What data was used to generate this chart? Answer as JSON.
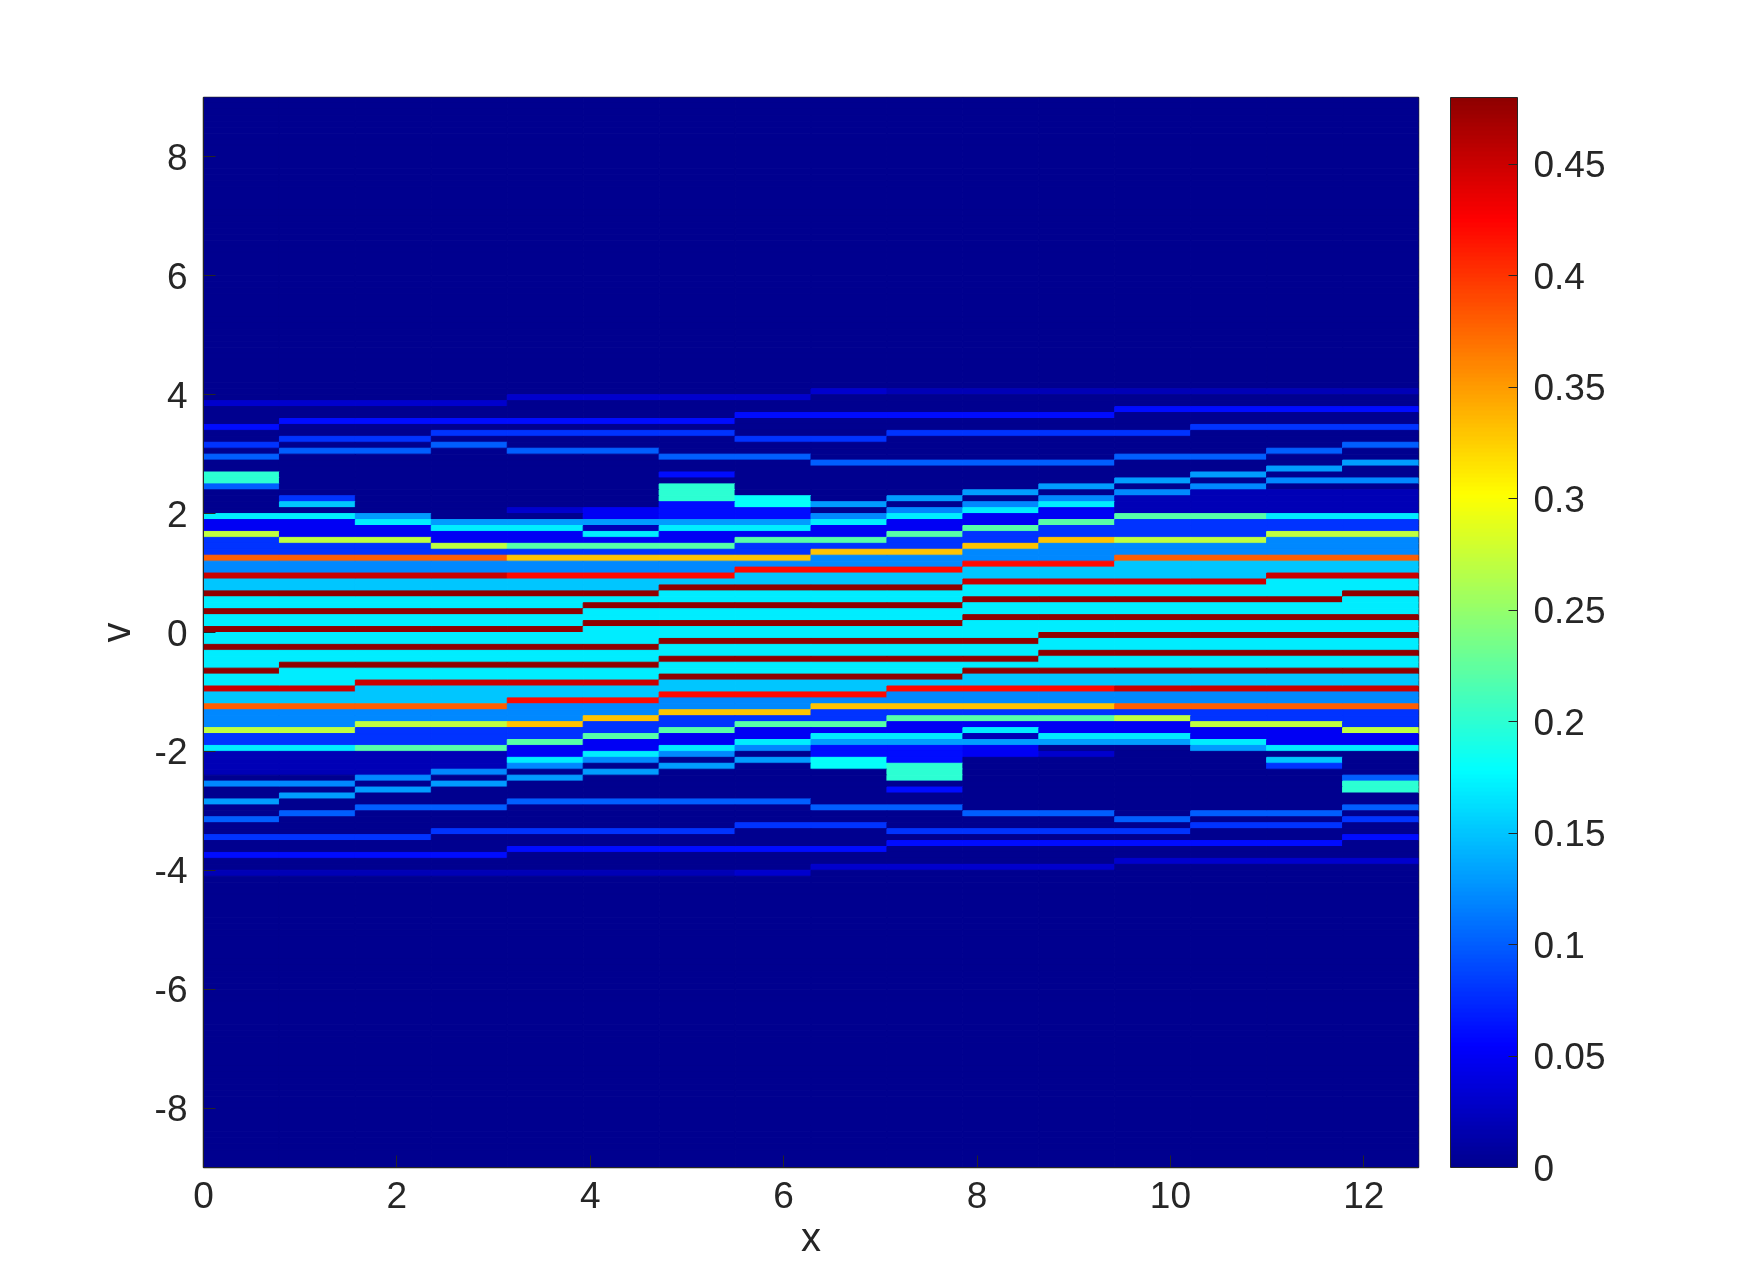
{
  "chart_data": {
    "type": "heatmap",
    "xlabel": "x",
    "ylabel": "v",
    "x": [
      0.393,
      1.178,
      1.963,
      2.749,
      3.534,
      4.32,
      5.105,
      5.89,
      6.676,
      7.461,
      8.247,
      9.032,
      9.817,
      10.603,
      11.388,
      12.174
    ],
    "cells": [
      [
        0,
        0,
        0,
        0,
        0,
        0,
        0,
        0,
        0,
        0,
        0,
        0,
        0,
        0,
        0,
        0
      ],
      [
        0,
        0,
        0,
        0,
        0,
        0,
        0,
        0,
        0,
        0,
        0,
        0,
        0,
        0,
        0,
        0
      ],
      [
        0,
        0,
        0,
        0,
        0,
        0,
        0,
        0,
        0,
        0,
        0,
        0,
        0,
        0,
        0,
        0
      ],
      [
        0,
        0,
        0,
        0,
        0,
        0,
        0,
        0,
        0,
        0,
        0,
        0,
        0,
        0,
        0,
        0
      ],
      [
        0,
        0,
        0,
        0,
        0,
        0,
        0,
        0,
        0,
        0,
        0,
        0,
        0,
        0,
        0,
        0
      ],
      [
        0,
        0,
        0,
        0,
        0,
        0,
        0,
        0,
        0,
        0,
        0,
        0,
        0,
        0,
        0,
        0
      ],
      [
        0,
        0,
        0,
        0,
        0,
        0,
        0,
        0,
        0,
        0,
        0,
        0,
        0,
        0,
        0,
        0
      ],
      [
        0,
        0,
        0,
        0,
        0,
        0,
        0,
        0,
        0,
        0,
        0,
        0,
        0,
        0,
        0,
        0
      ],
      [
        0,
        0,
        0,
        0,
        0,
        0,
        0,
        0,
        0,
        0,
        0,
        0,
        0,
        0,
        0,
        0
      ],
      [
        0,
        0,
        0,
        0,
        0,
        0,
        0,
        0,
        0,
        0,
        0,
        0,
        0,
        0,
        0,
        0
      ],
      [
        0,
        0,
        0,
        0,
        0,
        0,
        0,
        0,
        0,
        0,
        0,
        0,
        0,
        0,
        0,
        0
      ],
      [
        0,
        0,
        0,
        0,
        0,
        0,
        0,
        0,
        0,
        0,
        0,
        0,
        0,
        0,
        0,
        0
      ],
      [
        0,
        0,
        0,
        0,
        0,
        0,
        0,
        0,
        0,
        0,
        0,
        0,
        0,
        0,
        0,
        0
      ],
      [
        0,
        0,
        0,
        0,
        0,
        0,
        0,
        0,
        0,
        0,
        0,
        0,
        0,
        0,
        0,
        0
      ],
      [
        0,
        0,
        0,
        0,
        0,
        0,
        0,
        0,
        0,
        0,
        0,
        0,
        0,
        0,
        0,
        0
      ],
      [
        0,
        0,
        0,
        0,
        0,
        0,
        0,
        0,
        0,
        0,
        0,
        0,
        0,
        0,
        0,
        0
      ],
      [
        0,
        0,
        0,
        0,
        0,
        0,
        0,
        0,
        0,
        0,
        0,
        0,
        0,
        0,
        0,
        0
      ],
      [
        0,
        0,
        0,
        0,
        0,
        0,
        0,
        0,
        0,
        0,
        0,
        0,
        0,
        0,
        0,
        0
      ],
      [
        0,
        0,
        0,
        0,
        0,
        0,
        0,
        0,
        0,
        0,
        0,
        0,
        0,
        0,
        0,
        0
      ],
      [
        0,
        0,
        0,
        0,
        0,
        0,
        0,
        0,
        0,
        0,
        0,
        0,
        0,
        0,
        0,
        0
      ],
      [
        0,
        0,
        0,
        0,
        0,
        0,
        0,
        0,
        0,
        0,
        0,
        0,
        0,
        0,
        0,
        0
      ],
      [
        0,
        0,
        0,
        0,
        0,
        0,
        0,
        0,
        0,
        0,
        0,
        0,
        0,
        0,
        0,
        0
      ],
      [
        0,
        0,
        0,
        0,
        0,
        0,
        0,
        0,
        0,
        0,
        0,
        0,
        0,
        0,
        0,
        0
      ],
      [
        0,
        0,
        0,
        0,
        0,
        0,
        0,
        0,
        0,
        0,
        0,
        0,
        0,
        0,
        0,
        0
      ],
      [
        0,
        0,
        0,
        0,
        0,
        0,
        0,
        0,
        0,
        0,
        0,
        0,
        0,
        0,
        0,
        0
      ],
      [
        0,
        0,
        0,
        0,
        0,
        0,
        0,
        0,
        0,
        0,
        0,
        0,
        0,
        0,
        0,
        0
      ],
      [
        0,
        0,
        0,
        0,
        0,
        0,
        0,
        0,
        0,
        0,
        0,
        0,
        0,
        0,
        0,
        0
      ],
      [
        0,
        0,
        0,
        0,
        0,
        0,
        0,
        0,
        0,
        0,
        0,
        0,
        0,
        0,
        0,
        0
      ],
      [
        0,
        0,
        0,
        0,
        0,
        0,
        0,
        0,
        0,
        0,
        0,
        0,
        0,
        0,
        0,
        0
      ],
      [
        0,
        0,
        0,
        0,
        0,
        0,
        0,
        0,
        0,
        0,
        0,
        0,
        0,
        0,
        0,
        0
      ],
      [
        0,
        0,
        0,
        0,
        0,
        0,
        0,
        0,
        0,
        0,
        0,
        0,
        0,
        0,
        0,
        0
      ],
      [
        0,
        0,
        0,
        0,
        0,
        0,
        0,
        0,
        0,
        0,
        0,
        0,
        0,
        0,
        0,
        0
      ],
      [
        0,
        0,
        0,
        0,
        0,
        0,
        0,
        0,
        0,
        0,
        0,
        0,
        0,
        0,
        0,
        0
      ],
      [
        0,
        0,
        0,
        0,
        0,
        0,
        0,
        0,
        0,
        0,
        0,
        0,
        0,
        0,
        0,
        0
      ],
      [
        0,
        0,
        0,
        0,
        0,
        0,
        0,
        0,
        0,
        0,
        0,
        0,
        0,
        0,
        0,
        0
      ],
      [
        0,
        0,
        0,
        0,
        0,
        0,
        0,
        0,
        0,
        0,
        0,
        0,
        0,
        0,
        0,
        0
      ],
      [
        0,
        0,
        0,
        0,
        0,
        0,
        0,
        0,
        0,
        0,
        0,
        0,
        0,
        0,
        0,
        0
      ],
      [
        0,
        0,
        0,
        0,
        0,
        0,
        0,
        0,
        0,
        0,
        0,
        0,
        0,
        0,
        0,
        0
      ],
      [
        0,
        0,
        0,
        0,
        0,
        0,
        0,
        0,
        0,
        0,
        0,
        0,
        0,
        0,
        0,
        0
      ],
      [
        0,
        0,
        0,
        0,
        0,
        0,
        0,
        0,
        0,
        0,
        0,
        0,
        0,
        0,
        0,
        0
      ],
      [
        0,
        0,
        0,
        0,
        0,
        0,
        0,
        0,
        0,
        0,
        0,
        0,
        0,
        0,
        0,
        0
      ],
      [
        0,
        0,
        0,
        0,
        0,
        0,
        0,
        0,
        0,
        0,
        0,
        0,
        0,
        0,
        0,
        0
      ],
      [
        0,
        0,
        0,
        0,
        0,
        0,
        0,
        0,
        0,
        0,
        0,
        0,
        0,
        0,
        0,
        0
      ],
      [
        0,
        0,
        0,
        0,
        0,
        0,
        0,
        0,
        0,
        0,
        0,
        0,
        0,
        0,
        0,
        0
      ],
      [
        0,
        0,
        0,
        0,
        0,
        0,
        0,
        0,
        0,
        0,
        0,
        0,
        0,
        0,
        0,
        0
      ],
      [
        0,
        0,
        0,
        0,
        0,
        0,
        0,
        0,
        0,
        0,
        0,
        0,
        0,
        0,
        0,
        0
      ],
      [
        0,
        0,
        0,
        0,
        0,
        0,
        0,
        0,
        0,
        0,
        0,
        0,
        0,
        0,
        0,
        0
      ],
      [
        0,
        0,
        0,
        0,
        0,
        0,
        0,
        0,
        0,
        0,
        0,
        0,
        0,
        0,
        0,
        0
      ],
      [
        0,
        0,
        0,
        0,
        0,
        0,
        0,
        0,
        0,
        0,
        0,
        0,
        0,
        0,
        0,
        0
      ],
      [
        0,
        0,
        0,
        0,
        0,
        0,
        0,
        0,
        0.03,
        0.02,
        0.02,
        0.02,
        0.02,
        0.02,
        0.02,
        0.02
      ],
      [
        0,
        0,
        0,
        0,
        0.03,
        0.03,
        0.03,
        0.03,
        0,
        0,
        0,
        0,
        0,
        0,
        0,
        0
      ],
      [
        0.03,
        0.03,
        0.03,
        0.03,
        0,
        0,
        0,
        0,
        0,
        0,
        0,
        0,
        0,
        0,
        0,
        0
      ],
      [
        0,
        0,
        0,
        0,
        0,
        0,
        0,
        0,
        0,
        0,
        0,
        0,
        0.06,
        0.06,
        0.06,
        0.06
      ],
      [
        0,
        0,
        0,
        0,
        0,
        0,
        0,
        0.06,
        0.06,
        0.06,
        0.06,
        0.06,
        0,
        0,
        0,
        0
      ],
      [
        0,
        0.06,
        0.06,
        0.06,
        0.06,
        0.06,
        0.06,
        0,
        0,
        0,
        0,
        0,
        0,
        0,
        0,
        0
      ],
      [
        0.06,
        0,
        0,
        0,
        0,
        0,
        0,
        0,
        0,
        0,
        0,
        0,
        0,
        0.08,
        0.08,
        0.08
      ],
      [
        0,
        0,
        0,
        0.08,
        0.08,
        0.08,
        0.08,
        0,
        0,
        0.08,
        0.08,
        0.08,
        0.08,
        0,
        0,
        0
      ],
      [
        0,
        0.08,
        0.08,
        0,
        0,
        0,
        0,
        0.08,
        0.08,
        0,
        0,
        0,
        0,
        0,
        0,
        0
      ],
      [
        0.08,
        0,
        0,
        0.1,
        0,
        0,
        0,
        0,
        0,
        0,
        0,
        0,
        0,
        0,
        0,
        0.1
      ],
      [
        0,
        0.1,
        0.1,
        0,
        0.1,
        0.1,
        0,
        0,
        0,
        0,
        0,
        0,
        0,
        0,
        0.1,
        0
      ],
      [
        0.1,
        0,
        0,
        0,
        0,
        0,
        0.1,
        0.1,
        0,
        0,
        0,
        0,
        0.1,
        0.1,
        0,
        0
      ],
      [
        0,
        0,
        0,
        0,
        0,
        0,
        0,
        0,
        0.1,
        0.1,
        0.1,
        0.1,
        0,
        0,
        0,
        0.13
      ],
      [
        0,
        0,
        0,
        0,
        0,
        0,
        0,
        0,
        0,
        0,
        0,
        0,
        0,
        0,
        0.13,
        0
      ],
      [
        0.2,
        0,
        0,
        0,
        0,
        0,
        0.06,
        0,
        0,
        0,
        0,
        0,
        0,
        0.13,
        0,
        0
      ],
      [
        0.2,
        0,
        0,
        0,
        0,
        0,
        0,
        0,
        0,
        0,
        0,
        0,
        0.13,
        0,
        0.12,
        0.12
      ],
      [
        0.1,
        0,
        0,
        0,
        0,
        0,
        0.2,
        0,
        0,
        0,
        0,
        0.13,
        0,
        0.12,
        0,
        0
      ],
      [
        0,
        0,
        0,
        0,
        0,
        0,
        0.2,
        0,
        0,
        0,
        0.13,
        0,
        0.12,
        0.02,
        0.02,
        0.02
      ],
      [
        0,
        0.08,
        0,
        0,
        0,
        0,
        0.2,
        0.18,
        0,
        0.13,
        0,
        0.12,
        0.02,
        0.02,
        0.02,
        0.02
      ],
      [
        0,
        0.15,
        0,
        0,
        0,
        0,
        0.06,
        0.18,
        0.13,
        0,
        0.12,
        0.17,
        0.02,
        0.02,
        0.02,
        0.02
      ],
      [
        0,
        0,
        0,
        0,
        0.03,
        0.05,
        0.06,
        0.06,
        0,
        0.12,
        0.17,
        0.05,
        0.02,
        0.02,
        0.02,
        0.02
      ],
      [
        0.17,
        0.17,
        0.13,
        0,
        0,
        0.05,
        0.06,
        0.06,
        0.12,
        0.17,
        0.05,
        0.05,
        0.22,
        0.22,
        0.17,
        0.17
      ],
      [
        0.05,
        0.05,
        0.17,
        0.13,
        0.13,
        0.13,
        0.13,
        0.13,
        0.17,
        0.05,
        0.05,
        0.22,
        0.08,
        0.08,
        0.08,
        0.08
      ],
      [
        0.05,
        0.05,
        0.05,
        0.17,
        0.17,
        0.02,
        0.17,
        0.17,
        0.05,
        0.05,
        0.22,
        0.08,
        0.08,
        0.08,
        0.08,
        0.08
      ],
      [
        0.27,
        0.05,
        0.05,
        0.05,
        0.05,
        0.17,
        0.05,
        0.05,
        0.05,
        0.22,
        0.08,
        0.08,
        0.08,
        0.08,
        0.27,
        0.27
      ],
      [
        0.08,
        0.27,
        0.27,
        0.05,
        0.05,
        0.05,
        0.05,
        0.22,
        0.22,
        0.08,
        0.08,
        0.33,
        0.27,
        0.27,
        0.12,
        0.12
      ],
      [
        0.08,
        0.08,
        0.08,
        0.27,
        0.22,
        0.22,
        0.22,
        0.08,
        0.08,
        0.08,
        0.33,
        0.12,
        0.12,
        0.12,
        0.12,
        0.12
      ],
      [
        0.08,
        0.08,
        0.08,
        0.08,
        0.08,
        0.08,
        0.08,
        0.08,
        0.33,
        0.33,
        0.12,
        0.12,
        0.12,
        0.12,
        0.12,
        0.12
      ],
      [
        0.38,
        0.38,
        0.38,
        0.38,
        0.33,
        0.33,
        0.33,
        0.33,
        0.12,
        0.12,
        0.12,
        0.12,
        0.38,
        0.38,
        0.38,
        0.38
      ],
      [
        0.12,
        0.12,
        0.12,
        0.12,
        0.12,
        0.12,
        0.12,
        0.12,
        0.12,
        0.12,
        0.42,
        0.42,
        0.15,
        0.15,
        0.15,
        0.15
      ],
      [
        0.12,
        0.12,
        0.12,
        0.12,
        0.12,
        0.12,
        0.12,
        0.42,
        0.42,
        0.42,
        0.15,
        0.15,
        0.15,
        0.15,
        0.15,
        0.15
      ],
      [
        0.45,
        0.45,
        0.45,
        0.45,
        0.42,
        0.42,
        0.42,
        0.15,
        0.15,
        0.15,
        0.15,
        0.15,
        0.15,
        0.15,
        0.45,
        0.45
      ],
      [
        0.15,
        0.15,
        0.15,
        0.15,
        0.15,
        0.15,
        0.15,
        0.15,
        0.15,
        0.15,
        0.45,
        0.45,
        0.45,
        0.45,
        0.17,
        0.17
      ],
      [
        0.15,
        0.15,
        0.15,
        0.15,
        0.15,
        0.15,
        0.48,
        0.48,
        0.48,
        0.48,
        0.17,
        0.17,
        0.17,
        0.17,
        0.17,
        0.17
      ],
      [
        0.48,
        0.48,
        0.48,
        0.48,
        0.48,
        0.48,
        0.17,
        0.17,
        0.17,
        0.17,
        0.17,
        0.17,
        0.17,
        0.17,
        0.17,
        0.48
      ],
      [
        0.17,
        0.17,
        0.17,
        0.17,
        0.17,
        0.17,
        0.17,
        0.17,
        0.17,
        0.17,
        0.48,
        0.48,
        0.48,
        0.48,
        0.48,
        0.17
      ],
      [
        0.17,
        0.17,
        0.17,
        0.17,
        0.17,
        0.48,
        0.48,
        0.48,
        0.48,
        0.48,
        0.17,
        0.17,
        0.17,
        0.17,
        0.17,
        0.17
      ],
      [
        0.48,
        0.48,
        0.48,
        0.48,
        0.48,
        0.17,
        0.17,
        0.17,
        0.17,
        0.17,
        0.17,
        0.17,
        0.17,
        0.17,
        0.17,
        0.17
      ],
      [
        0.17,
        0.17,
        0.17,
        0.17,
        0.17,
        0.17,
        0.17,
        0.17,
        0.17,
        0.17,
        0.48,
        0.48,
        0.48,
        0.48,
        0.48,
        0.48
      ],
      [
        0.17,
        0.17,
        0.17,
        0.17,
        0.17,
        0.48,
        0.48,
        0.48,
        0.48,
        0.48,
        0.17,
        0.17,
        0.17,
        0.17,
        0.17,
        0.17
      ],
      [
        0.48,
        0.48,
        0.48,
        0.48,
        0.48,
        0.17,
        0.17,
        0.17,
        0.17,
        0.17,
        0.17,
        0.17,
        0.17,
        0.17,
        0.17,
        0.17
      ],
      [
        0.17,
        0.17,
        0.17,
        0.17,
        0.17,
        0.17,
        0.17,
        0.17,
        0.17,
        0.17,
        0.17,
        0.48,
        0.48,
        0.48,
        0.48,
        0.48
      ],
      [
        0.17,
        0.17,
        0.17,
        0.17,
        0.17,
        0.17,
        0.48,
        0.48,
        0.48,
        0.48,
        0.48,
        0.17,
        0.17,
        0.17,
        0.17,
        0.17
      ],
      [
        0.48,
        0.48,
        0.48,
        0.48,
        0.48,
        0.48,
        0.17,
        0.17,
        0.17,
        0.17,
        0.17,
        0.17,
        0.17,
        0.17,
        0.17,
        0.17
      ],
      [
        0.17,
        0.17,
        0.17,
        0.17,
        0.17,
        0.17,
        0.17,
        0.17,
        0.17,
        0.17,
        0.17,
        0.48,
        0.48,
        0.48,
        0.48,
        0.48
      ],
      [
        0.17,
        0.17,
        0.17,
        0.17,
        0.17,
        0.17,
        0.48,
        0.48,
        0.48,
        0.48,
        0.48,
        0.17,
        0.17,
        0.17,
        0.17,
        0.17
      ],
      [
        0.17,
        0.48,
        0.48,
        0.48,
        0.48,
        0.48,
        0.17,
        0.17,
        0.17,
        0.17,
        0.17,
        0.17,
        0.17,
        0.17,
        0.17,
        0.17
      ],
      [
        0.48,
        0.17,
        0.17,
        0.17,
        0.17,
        0.17,
        0.17,
        0.17,
        0.17,
        0.17,
        0.48,
        0.48,
        0.48,
        0.48,
        0.48,
        0.48
      ],
      [
        0.17,
        0.17,
        0.17,
        0.17,
        0.17,
        0.17,
        0.48,
        0.48,
        0.48,
        0.48,
        0.15,
        0.15,
        0.15,
        0.15,
        0.15,
        0.15
      ],
      [
        0.17,
        0.17,
        0.45,
        0.45,
        0.45,
        0.45,
        0.15,
        0.15,
        0.15,
        0.15,
        0.15,
        0.15,
        0.15,
        0.15,
        0.15,
        0.15
      ],
      [
        0.45,
        0.45,
        0.15,
        0.15,
        0.15,
        0.15,
        0.15,
        0.15,
        0.15,
        0.42,
        0.42,
        0.42,
        0.45,
        0.45,
        0.45,
        0.45
      ],
      [
        0.15,
        0.15,
        0.15,
        0.15,
        0.15,
        0.15,
        0.42,
        0.42,
        0.42,
        0.12,
        0.12,
        0.12,
        0.12,
        0.12,
        0.12,
        0.12
      ],
      [
        0.15,
        0.15,
        0.15,
        0.15,
        0.42,
        0.42,
        0.12,
        0.12,
        0.12,
        0.12,
        0.12,
        0.12,
        0.12,
        0.12,
        0.12,
        0.12
      ],
      [
        0.38,
        0.38,
        0.38,
        0.38,
        0.12,
        0.12,
        0.12,
        0.12,
        0.33,
        0.33,
        0.33,
        0.33,
        0.38,
        0.38,
        0.38,
        0.38
      ],
      [
        0.12,
        0.12,
        0.12,
        0.12,
        0.12,
        0.12,
        0.33,
        0.33,
        0.08,
        0.08,
        0.08,
        0.08,
        0.08,
        0.08,
        0.08,
        0.08
      ],
      [
        0.12,
        0.12,
        0.12,
        0.12,
        0.12,
        0.33,
        0.08,
        0.08,
        0.08,
        0.22,
        0.22,
        0.22,
        0.27,
        0.08,
        0.08,
        0.08
      ],
      [
        0.12,
        0.12,
        0.27,
        0.27,
        0.33,
        0.08,
        0.08,
        0.22,
        0.22,
        0.05,
        0.05,
        0.05,
        0.05,
        0.27,
        0.27,
        0.08
      ],
      [
        0.27,
        0.27,
        0.08,
        0.08,
        0.08,
        0.08,
        0.22,
        0.05,
        0.05,
        0.05,
        0.17,
        0.05,
        0.05,
        0.05,
        0.05,
        0.27
      ],
      [
        0.08,
        0.08,
        0.08,
        0.08,
        0.08,
        0.22,
        0.05,
        0.05,
        0.17,
        0.17,
        0.02,
        0.17,
        0.17,
        0.05,
        0.05,
        0.05
      ],
      [
        0.08,
        0.08,
        0.08,
        0.08,
        0.22,
        0.05,
        0.05,
        0.17,
        0.13,
        0.13,
        0.13,
        0.13,
        0.13,
        0.17,
        0.05,
        0.05
      ],
      [
        0.17,
        0.17,
        0.22,
        0.22,
        0.05,
        0.05,
        0.17,
        0.12,
        0.06,
        0.06,
        0.05,
        0,
        0,
        0.13,
        0.17,
        0.17
      ],
      [
        0.02,
        0.02,
        0.02,
        0.02,
        0.05,
        0.17,
        0.12,
        0,
        0.06,
        0.06,
        0.05,
        0.03,
        0,
        0,
        0,
        0
      ],
      [
        0.02,
        0.02,
        0.02,
        0.02,
        0.17,
        0.12,
        0,
        0.13,
        0.18,
        0.06,
        0,
        0,
        0,
        0,
        0.15,
        0
      ],
      [
        0.02,
        0.02,
        0.02,
        0.02,
        0.12,
        0,
        0.13,
        0,
        0.18,
        0.2,
        0,
        0,
        0,
        0,
        0.08,
        0
      ],
      [
        0.02,
        0.02,
        0.02,
        0.12,
        0,
        0.13,
        0,
        0,
        0,
        0.2,
        0,
        0,
        0,
        0,
        0,
        0
      ],
      [
        0,
        0,
        0.12,
        0,
        0.13,
        0,
        0,
        0,
        0,
        0.2,
        0,
        0,
        0,
        0,
        0,
        0.1
      ],
      [
        0.12,
        0.12,
        0,
        0.13,
        0,
        0,
        0,
        0,
        0,
        0,
        0,
        0,
        0,
        0,
        0,
        0.2
      ],
      [
        0,
        0,
        0.13,
        0,
        0,
        0,
        0,
        0,
        0,
        0.06,
        0,
        0,
        0,
        0,
        0,
        0.2
      ],
      [
        0,
        0.13,
        0,
        0,
        0,
        0,
        0,
        0,
        0,
        0,
        0,
        0,
        0,
        0,
        0,
        0
      ],
      [
        0.13,
        0,
        0,
        0,
        0.1,
        0.1,
        0.1,
        0.1,
        0,
        0,
        0,
        0,
        0,
        0,
        0,
        0
      ],
      [
        0,
        0,
        0.1,
        0.1,
        0,
        0,
        0,
        0,
        0.1,
        0.1,
        0,
        0,
        0,
        0,
        0,
        0.1
      ],
      [
        0,
        0.1,
        0,
        0,
        0,
        0,
        0,
        0,
        0,
        0,
        0.1,
        0.1,
        0,
        0.1,
        0.1,
        0
      ],
      [
        0.1,
        0,
        0,
        0,
        0,
        0,
        0,
        0,
        0,
        0,
        0,
        0,
        0.1,
        0,
        0,
        0.08
      ],
      [
        0,
        0,
        0,
        0,
        0,
        0,
        0,
        0.08,
        0.08,
        0,
        0,
        0,
        0,
        0.08,
        0.08,
        0
      ],
      [
        0,
        0,
        0,
        0.08,
        0.08,
        0.08,
        0.08,
        0,
        0,
        0.08,
        0.08,
        0.08,
        0.08,
        0,
        0,
        0
      ],
      [
        0.08,
        0.08,
        0.08,
        0,
        0,
        0,
        0,
        0,
        0,
        0,
        0,
        0,
        0,
        0,
        0,
        0.06
      ],
      [
        0,
        0,
        0,
        0,
        0,
        0,
        0,
        0,
        0,
        0.06,
        0.06,
        0.06,
        0.06,
        0.06,
        0.06,
        0
      ],
      [
        0,
        0,
        0,
        0,
        0.06,
        0.06,
        0.06,
        0.06,
        0.06,
        0,
        0,
        0,
        0,
        0,
        0,
        0
      ],
      [
        0.06,
        0.06,
        0.06,
        0.06,
        0,
        0,
        0,
        0,
        0,
        0,
        0,
        0,
        0,
        0,
        0,
        0
      ],
      [
        0,
        0,
        0,
        0,
        0,
        0,
        0,
        0,
        0,
        0,
        0,
        0,
        0.03,
        0.03,
        0.03,
        0.03
      ],
      [
        0,
        0,
        0,
        0,
        0,
        0,
        0,
        0,
        0.03,
        0.03,
        0.03,
        0.03,
        0,
        0,
        0,
        0
      ],
      [
        0.02,
        0.02,
        0.02,
        0.02,
        0.02,
        0.02,
        0.02,
        0.03,
        0,
        0,
        0,
        0,
        0,
        0,
        0,
        0
      ],
      [
        0,
        0,
        0,
        0,
        0,
        0,
        0,
        0,
        0,
        0,
        0,
        0,
        0,
        0,
        0,
        0
      ],
      [
        0,
        0,
        0,
        0,
        0,
        0,
        0,
        0,
        0,
        0,
        0,
        0,
        0,
        0,
        0,
        0
      ],
      [
        0,
        0,
        0,
        0,
        0,
        0,
        0,
        0,
        0,
        0,
        0,
        0,
        0,
        0,
        0,
        0
      ],
      [
        0,
        0,
        0,
        0,
        0,
        0,
        0,
        0,
        0,
        0,
        0,
        0,
        0,
        0,
        0,
        0
      ],
      [
        0,
        0,
        0,
        0,
        0,
        0,
        0,
        0,
        0,
        0,
        0,
        0,
        0,
        0,
        0,
        0
      ],
      [
        0,
        0,
        0,
        0,
        0,
        0,
        0,
        0,
        0,
        0,
        0,
        0,
        0,
        0,
        0,
        0
      ],
      [
        0,
        0,
        0,
        0,
        0,
        0,
        0,
        0,
        0,
        0,
        0,
        0,
        0,
        0,
        0,
        0
      ],
      [
        0,
        0,
        0,
        0,
        0,
        0,
        0,
        0,
        0,
        0,
        0,
        0,
        0,
        0,
        0,
        0
      ],
      [
        0,
        0,
        0,
        0,
        0,
        0,
        0,
        0,
        0,
        0,
        0,
        0,
        0,
        0,
        0,
        0
      ],
      [
        0,
        0,
        0,
        0,
        0,
        0,
        0,
        0,
        0,
        0,
        0,
        0,
        0,
        0,
        0,
        0
      ],
      [
        0,
        0,
        0,
        0,
        0,
        0,
        0,
        0,
        0,
        0,
        0,
        0,
        0,
        0,
        0,
        0
      ],
      [
        0,
        0,
        0,
        0,
        0,
        0,
        0,
        0,
        0,
        0,
        0,
        0,
        0,
        0,
        0,
        0
      ],
      [
        0,
        0,
        0,
        0,
        0,
        0,
        0,
        0,
        0,
        0,
        0,
        0,
        0,
        0,
        0,
        0
      ],
      [
        0,
        0,
        0,
        0,
        0,
        0,
        0,
        0,
        0,
        0,
        0,
        0,
        0,
        0,
        0,
        0
      ],
      [
        0,
        0,
        0,
        0,
        0,
        0,
        0,
        0,
        0,
        0,
        0,
        0,
        0,
        0,
        0,
        0
      ],
      [
        0,
        0,
        0,
        0,
        0,
        0,
        0,
        0,
        0,
        0,
        0,
        0,
        0,
        0,
        0,
        0
      ],
      [
        0,
        0,
        0,
        0,
        0,
        0,
        0,
        0,
        0,
        0,
        0,
        0,
        0,
        0,
        0,
        0
      ],
      [
        0,
        0,
        0,
        0,
        0,
        0,
        0,
        0,
        0,
        0,
        0,
        0,
        0,
        0,
        0,
        0
      ],
      [
        0,
        0,
        0,
        0,
        0,
        0,
        0,
        0,
        0,
        0,
        0,
        0,
        0,
        0,
        0,
        0
      ],
      [
        0,
        0,
        0,
        0,
        0,
        0,
        0,
        0,
        0,
        0,
        0,
        0,
        0,
        0,
        0,
        0
      ],
      [
        0,
        0,
        0,
        0,
        0,
        0,
        0,
        0,
        0,
        0,
        0,
        0,
        0,
        0,
        0,
        0
      ],
      [
        0,
        0,
        0,
        0,
        0,
        0,
        0,
        0,
        0,
        0,
        0,
        0,
        0,
        0,
        0,
        0
      ],
      [
        0,
        0,
        0,
        0,
        0,
        0,
        0,
        0,
        0,
        0,
        0,
        0,
        0,
        0,
        0,
        0
      ],
      [
        0,
        0,
        0,
        0,
        0,
        0,
        0,
        0,
        0,
        0,
        0,
        0,
        0,
        0,
        0,
        0
      ],
      [
        0,
        0,
        0,
        0,
        0,
        0,
        0,
        0,
        0,
        0,
        0,
        0,
        0,
        0,
        0,
        0
      ],
      [
        0,
        0,
        0,
        0,
        0,
        0,
        0,
        0,
        0,
        0,
        0,
        0,
        0,
        0,
        0,
        0
      ],
      [
        0,
        0,
        0,
        0,
        0,
        0,
        0,
        0,
        0,
        0,
        0,
        0,
        0,
        0,
        0,
        0
      ],
      [
        0,
        0,
        0,
        0,
        0,
        0,
        0,
        0,
        0,
        0,
        0,
        0,
        0,
        0,
        0,
        0
      ],
      [
        0,
        0,
        0,
        0,
        0,
        0,
        0,
        0,
        0,
        0,
        0,
        0,
        0,
        0,
        0,
        0
      ],
      [
        0,
        0,
        0,
        0,
        0,
        0,
        0,
        0,
        0,
        0,
        0,
        0,
        0,
        0,
        0,
        0
      ],
      [
        0,
        0,
        0,
        0,
        0,
        0,
        0,
        0,
        0,
        0,
        0,
        0,
        0,
        0,
        0,
        0
      ],
      [
        0,
        0,
        0,
        0,
        0,
        0,
        0,
        0,
        0,
        0,
        0,
        0,
        0,
        0,
        0,
        0
      ],
      [
        0,
        0,
        0,
        0,
        0,
        0,
        0,
        0,
        0,
        0,
        0,
        0,
        0,
        0,
        0,
        0
      ],
      [
        0,
        0,
        0,
        0,
        0,
        0,
        0,
        0,
        0,
        0,
        0,
        0,
        0,
        0,
        0,
        0
      ],
      [
        0,
        0,
        0,
        0,
        0,
        0,
        0,
        0,
        0,
        0,
        0,
        0,
        0,
        0,
        0,
        0
      ],
      [
        0,
        0,
        0,
        0,
        0,
        0,
        0,
        0,
        0,
        0,
        0,
        0,
        0,
        0,
        0,
        0
      ],
      [
        0,
        0,
        0,
        0,
        0,
        0,
        0,
        0,
        0,
        0,
        0,
        0,
        0,
        0,
        0,
        0
      ],
      [
        0,
        0,
        0,
        0,
        0,
        0,
        0,
        0,
        0,
        0,
        0,
        0,
        0,
        0,
        0,
        0
      ],
      [
        0,
        0,
        0,
        0,
        0,
        0,
        0,
        0,
        0,
        0,
        0,
        0,
        0,
        0,
        0,
        0
      ],
      [
        0,
        0,
        0,
        0,
        0,
        0,
        0,
        0,
        0,
        0,
        0,
        0,
        0,
        0,
        0,
        0
      ],
      [
        0,
        0,
        0,
        0,
        0,
        0,
        0,
        0,
        0,
        0,
        0,
        0,
        0,
        0,
        0,
        0
      ],
      [
        0,
        0,
        0,
        0,
        0,
        0,
        0,
        0,
        0,
        0,
        0,
        0,
        0,
        0,
        0,
        0
      ],
      [
        0,
        0,
        0,
        0,
        0,
        0,
        0,
        0,
        0,
        0,
        0,
        0,
        0,
        0,
        0,
        0
      ],
      [
        0,
        0,
        0,
        0,
        0,
        0,
        0,
        0,
        0,
        0,
        0,
        0,
        0,
        0,
        0,
        0
      ],
      [
        0,
        0,
        0,
        0,
        0,
        0,
        0,
        0,
        0,
        0,
        0,
        0,
        0,
        0,
        0,
        0
      ],
      [
        0,
        0,
        0,
        0,
        0,
        0,
        0,
        0,
        0,
        0,
        0,
        0,
        0,
        0,
        0,
        0
      ],
      [
        0,
        0,
        0,
        0,
        0,
        0,
        0,
        0,
        0,
        0,
        0,
        0,
        0,
        0,
        0,
        0
      ],
      [
        0,
        0,
        0,
        0,
        0,
        0,
        0,
        0,
        0,
        0,
        0,
        0,
        0,
        0,
        0,
        0
      ],
      [
        0,
        0,
        0,
        0,
        0,
        0,
        0,
        0,
        0,
        0,
        0,
        0,
        0,
        0,
        0,
        0
      ]
    ],
    "clim": [
      0,
      0.48
    ],
    "cticks": [
      0,
      0.05,
      0.1,
      0.15,
      0.2,
      0.25,
      0.3,
      0.35,
      0.4,
      0.45
    ],
    "xlim": [
      0,
      12.566
    ],
    "xticks": [
      0,
      2,
      4,
      6,
      8,
      10,
      12
    ],
    "ylim": [
      -9,
      9
    ],
    "yticks": [
      -8,
      -6,
      -4,
      -2,
      0,
      2,
      4,
      6,
      8
    ]
  }
}
